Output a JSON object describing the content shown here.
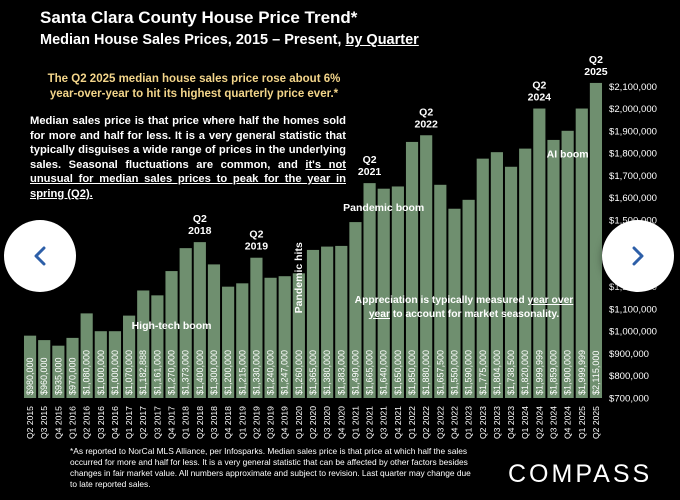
{
  "header": {
    "title": "Santa Clara County House Price Trend*",
    "subtitle_main": "Median House Sales Prices, 2015 – Present, ",
    "subtitle_link": "by Quarter"
  },
  "highlight_text": "The Q2 2025 median house sales price rose about 6% year-over-year to hit its highest quarterly price ever.*",
  "description": {
    "part1": "Median sales price is that price where half the homes sold for more and half for less. It is a very general statistic that typically disguises a wide range of prices in the underlying sales. Seasonal fluctuations are common, and ",
    "part2": "it's not unusual for median sales prices to peak for the year in spring (Q2)."
  },
  "mid_note": {
    "part1": "Appreciation is typically measured ",
    "part2": "year over year",
    "part3": " to account for market seasonality."
  },
  "footnote": "*As reported to NorCal MLS Alliance, per Infosparks. Median sales price is that price at which half the sales occurred for more and half for less. It is a very general statistic that can be affected by other factors besides changes in fair market value. All numbers approximate and subject to revision. Last quarter may change due to late reported sales.",
  "brand": "COMPASS",
  "colors": {
    "bar": "#6f8f6f",
    "background": "#000000",
    "highlight": "#f3d58a",
    "text": "#ffffff"
  },
  "nav": {
    "prev_icon": "chevron-left-icon",
    "next_icon": "chevron-right-icon"
  },
  "chart_data": {
    "type": "bar",
    "title": "Santa Clara County House Price Trend*",
    "subtitle": "Median House Sales Prices, 2015 – Present, by Quarter",
    "categories": [
      "Q2 2015",
      "Q3 2015",
      "Q4 2015",
      "Q1 2016",
      "Q2 2016",
      "Q3 2016",
      "Q4 2016",
      "Q1 2017",
      "Q2 2017",
      "Q3 2017",
      "Q4 2017",
      "Q1 2018",
      "Q2 2018",
      "Q3 2018",
      "Q4 2018",
      "Q1 2019",
      "Q2 2019",
      "Q3 2019",
      "Q4 2019",
      "Q1 2020",
      "Q2 2020",
      "Q3 2020",
      "Q4 2020",
      "Q1 2021",
      "Q2 2021",
      "Q3 2021",
      "Q4 2021",
      "Q1 2022",
      "Q2 2022",
      "Q3 2022",
      "Q4 2022",
      "Q1 2023",
      "Q2 2023",
      "Q3 2023",
      "Q4 2023",
      "Q1 2024",
      "Q2 2024",
      "Q3 2024",
      "Q4 2024",
      "Q1 2025",
      "Q2 2025"
    ],
    "values": [
      980000,
      960000,
      935000,
      970000,
      1080000,
      1000000,
      1000000,
      1070000,
      1182888,
      1161000,
      1270000,
      1373000,
      1400000,
      1300000,
      1200000,
      1215000,
      1330000,
      1240000,
      1247000,
      1260000,
      1365000,
      1380000,
      1383000,
      1490000,
      1665000,
      1640000,
      1650000,
      1850000,
      1880000,
      1657500,
      1550000,
      1590000,
      1775000,
      1804000,
      1738500,
      1820000,
      1999999,
      1859000,
      1900000,
      1999999,
      2115000
    ],
    "value_labels": [
      "$980,000",
      "$960,000",
      "$935,000",
      "$970,000",
      "$1,080,000",
      "$1,000,000",
      "$1,000,000",
      "$1,070,000",
      "$1,182,888",
      "$1,161,000",
      "$1,270,000",
      "$1,373,000",
      "$1,400,000",
      "$1,300,000",
      "$1,200,000",
      "$1,215,000",
      "$1,330,000",
      "$1,240,000",
      "$1,247,000",
      "$1,260,000",
      "$1,365,000",
      "$1,380,000",
      "$1,383,000",
      "$1,490,000",
      "$1,665,000",
      "$1,640,000",
      "$1,650,000",
      "$1,850,000",
      "$1,880,000",
      "$1,657,500",
      "$1,550,000",
      "$1,590,000",
      "$1,775,000",
      "$1,804,000",
      "$1,738,500",
      "$1,820,000",
      "$1,999,999",
      "$1,859,000",
      "$1,900,000",
      "$1,999,999",
      "$2,115,000"
    ],
    "ylim": [
      700000,
      2200000
    ],
    "y_ticks": [
      700000,
      800000,
      900000,
      1000000,
      1100000,
      1200000,
      1300000,
      1400000,
      1500000,
      1600000,
      1700000,
      1800000,
      1900000,
      2000000,
      2100000
    ],
    "y_tick_labels": [
      "$700,000",
      "$800,000",
      "$900,000",
      "$1,000,000",
      "$1,100,000",
      "$1,200,000",
      "$1,300,000",
      "$1,400,000",
      "$1,500,000",
      "$1,600,000",
      "$1,700,000",
      "$1,800,000",
      "$1,900,000",
      "$2,000,000",
      "$2,100,000"
    ],
    "bar_top_labels": [
      {
        "category": "Q2 2018",
        "lines": [
          "Q2",
          "2018"
        ]
      },
      {
        "category": "Q2 2019",
        "lines": [
          "Q2",
          "2019"
        ]
      },
      {
        "category": "Q2 2021",
        "lines": [
          "Q2",
          "2021"
        ]
      },
      {
        "category": "Q2 2022",
        "lines": [
          "Q2",
          "2022"
        ]
      },
      {
        "category": "Q2 2024",
        "lines": [
          "Q2",
          "2024"
        ]
      },
      {
        "category": "Q2 2025",
        "lines": [
          "Q2",
          "2025"
        ]
      }
    ],
    "annotations": [
      {
        "text": "High-tech boom",
        "category": "Q4 2017",
        "value": 1010000,
        "orientation": "horizontal"
      },
      {
        "text": "Pandemic hits",
        "category": "Q1 2020",
        "value": 1080000,
        "orientation": "vertical"
      },
      {
        "text": "Pandemic boom",
        "category": "Q3 2021",
        "value": 1540000,
        "orientation": "horizontal"
      },
      {
        "text": "AI boom",
        "category": "Q4 2024",
        "value": 1780000,
        "orientation": "horizontal"
      }
    ]
  }
}
